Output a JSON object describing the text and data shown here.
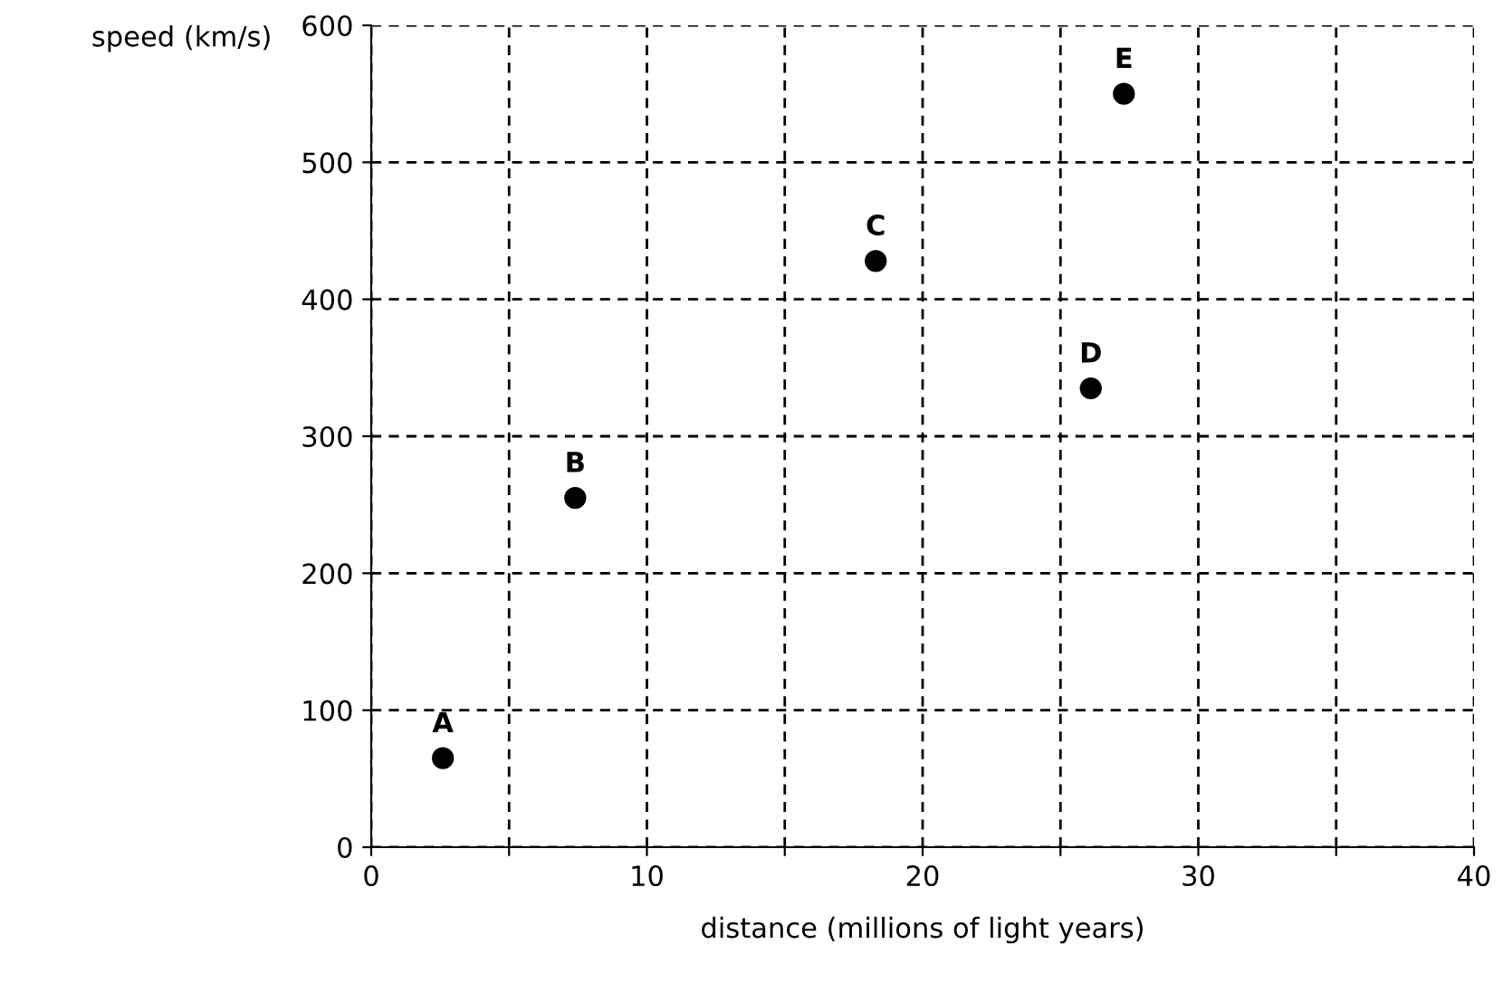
{
  "chart_data": {
    "type": "scatter",
    "xlabel": "distance (millions of light years)",
    "ylabel": "speed (km/s)",
    "x": [
      2.6,
      7.4,
      18.3,
      26.1,
      27.3
    ],
    "series": [
      {
        "color": "#000000",
        "values": [
          65,
          255,
          428,
          335,
          550
        ]
      }
    ],
    "annotations": [
      {
        "text": "A",
        "x": 2.6,
        "y": 65
      },
      {
        "text": "B",
        "x": 7.4,
        "y": 255
      },
      {
        "text": "C",
        "x": 18.3,
        "y": 428
      },
      {
        "text": "D",
        "x": 26.1,
        "y": 335
      },
      {
        "text": "E",
        "x": 27.3,
        "y": 550
      }
    ],
    "xlim": [
      0,
      40
    ],
    "ylim": [
      0,
      600
    ],
    "xticks": [
      0,
      {
        "value": 5,
        "label": null
      },
      10,
      {
        "value": 15,
        "label": null
      },
      20,
      {
        "value": 25,
        "label": null
      },
      30,
      {
        "value": 35,
        "label": null
      },
      40
    ],
    "yticks": [
      0,
      100,
      200,
      300,
      400,
      500,
      600
    ],
    "grid": true,
    "marker": "circle"
  }
}
